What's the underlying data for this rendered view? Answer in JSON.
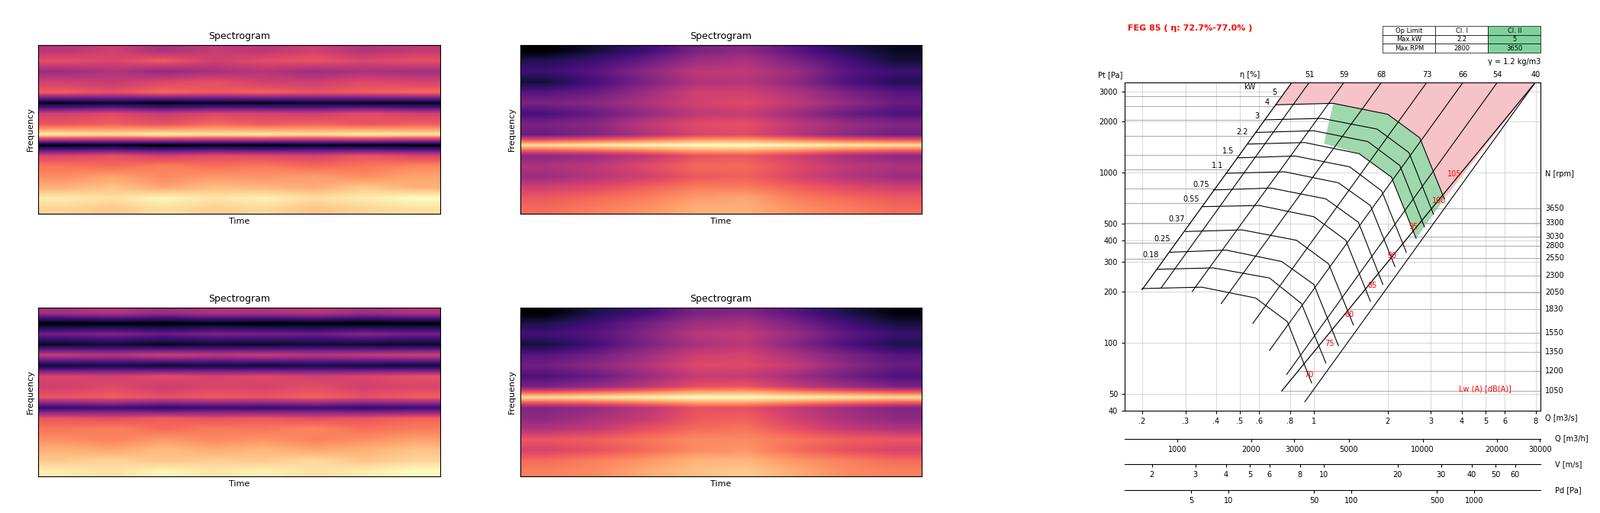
{
  "chart_data": [
    {
      "type": "heatmap",
      "title": "Spectrogram",
      "x_label": "Time",
      "y_label": "Frequency",
      "tick_labels": false,
      "cells": [
        [
          0.45,
          0.5,
          0.42,
          0.48,
          0.46,
          0.5,
          0.44,
          0.47
        ],
        [
          0.55,
          0.52,
          0.58,
          0.5,
          0.54,
          0.56,
          0.52,
          0.55
        ],
        [
          0.4,
          0.44,
          0.38,
          0.42,
          0.45,
          0.4,
          0.43,
          0.41
        ],
        [
          0.5,
          0.48,
          0.52,
          0.55,
          0.5,
          0.49,
          0.53,
          0.51
        ],
        [
          0.58,
          0.55,
          0.6,
          0.57,
          0.59,
          0.56,
          0.58,
          0.6
        ],
        [
          0.08,
          0.1,
          0.07,
          0.09,
          0.08,
          0.1,
          0.09,
          0.08
        ],
        [
          0.5,
          0.53,
          0.48,
          0.52,
          0.51,
          0.49,
          0.54,
          0.5
        ],
        [
          0.56,
          0.58,
          0.55,
          0.6,
          0.57,
          0.59,
          0.56,
          0.58
        ],
        [
          0.82,
          0.8,
          0.83,
          0.81,
          0.82,
          0.8,
          0.83,
          0.81
        ],
        [
          0.06,
          0.08,
          0.05,
          0.07,
          0.06,
          0.08,
          0.07,
          0.06
        ],
        [
          0.52,
          0.55,
          0.5,
          0.54,
          0.53,
          0.51,
          0.56,
          0.52
        ],
        [
          0.62,
          0.6,
          0.64,
          0.61,
          0.63,
          0.6,
          0.62,
          0.65
        ],
        [
          0.66,
          0.7,
          0.65,
          0.68,
          0.67,
          0.69,
          0.66,
          0.7
        ],
        [
          0.72,
          0.75,
          0.7,
          0.74,
          0.73,
          0.71,
          0.76,
          0.72
        ],
        [
          0.82,
          0.8,
          0.84,
          0.81,
          0.83,
          0.8,
          0.82,
          0.85
        ],
        [
          0.78,
          0.76,
          0.8,
          0.77,
          0.79,
          0.75,
          0.78,
          0.8
        ]
      ]
    },
    {
      "type": "heatmap",
      "title": "Spectrogram",
      "x_label": "Time",
      "y_label": "Frequency",
      "tick_labels": false,
      "cells": [
        [
          0.45,
          0.5,
          0.55,
          0.62,
          0.64,
          0.58,
          0.52,
          0.48
        ],
        [
          0.52,
          0.55,
          0.6,
          0.66,
          0.68,
          0.62,
          0.56,
          0.5
        ],
        [
          0.55,
          0.58,
          0.64,
          0.7,
          0.7,
          0.66,
          0.58,
          0.55
        ],
        [
          0.5,
          0.56,
          0.62,
          0.68,
          0.69,
          0.64,
          0.57,
          0.52
        ],
        [
          0.58,
          0.6,
          0.66,
          0.72,
          0.72,
          0.68,
          0.62,
          0.58
        ],
        [
          0.62,
          0.64,
          0.68,
          0.72,
          0.74,
          0.7,
          0.65,
          0.6
        ],
        [
          0.56,
          0.6,
          0.65,
          0.7,
          0.71,
          0.66,
          0.6,
          0.57
        ],
        [
          0.62,
          0.64,
          0.7,
          0.74,
          0.75,
          0.7,
          0.66,
          0.63
        ],
        [
          0.6,
          0.63,
          0.68,
          0.73,
          0.74,
          0.69,
          0.64,
          0.61
        ],
        [
          0.9,
          0.91,
          0.92,
          0.93,
          0.93,
          0.92,
          0.91,
          0.9
        ],
        [
          0.64,
          0.66,
          0.7,
          0.75,
          0.76,
          0.72,
          0.67,
          0.64
        ],
        [
          0.68,
          0.7,
          0.74,
          0.78,
          0.78,
          0.74,
          0.7,
          0.68
        ],
        [
          0.66,
          0.69,
          0.72,
          0.76,
          0.77,
          0.73,
          0.69,
          0.66
        ],
        [
          0.72,
          0.74,
          0.77,
          0.8,
          0.8,
          0.77,
          0.74,
          0.72
        ],
        [
          0.76,
          0.78,
          0.8,
          0.83,
          0.84,
          0.8,
          0.78,
          0.76
        ],
        [
          0.78,
          0.8,
          0.82,
          0.85,
          0.85,
          0.82,
          0.8,
          0.78
        ]
      ]
    },
    {
      "type": "heatmap",
      "title": "Spectrogram",
      "x_label": "Time",
      "y_label": "Frequency",
      "tick_labels": false,
      "cells": [
        [
          0.42,
          0.45,
          0.4,
          0.44,
          0.43,
          0.46,
          0.41,
          0.44
        ],
        [
          0.05,
          0.06,
          0.05,
          0.07,
          0.05,
          0.06,
          0.05,
          0.06
        ],
        [
          0.32,
          0.35,
          0.3,
          0.34,
          0.33,
          0.31,
          0.36,
          0.32
        ],
        [
          0.1,
          0.12,
          0.09,
          0.11,
          0.1,
          0.12,
          0.11,
          0.1
        ],
        [
          0.48,
          0.45,
          0.5,
          0.47,
          0.49,
          0.46,
          0.48,
          0.5
        ],
        [
          0.12,
          0.14,
          0.11,
          0.13,
          0.12,
          0.14,
          0.13,
          0.12
        ],
        [
          0.52,
          0.5,
          0.54,
          0.51,
          0.53,
          0.5,
          0.52,
          0.55
        ],
        [
          0.5,
          0.53,
          0.49,
          0.52,
          0.51,
          0.54,
          0.5,
          0.52
        ],
        [
          0.56,
          0.58,
          0.55,
          0.57,
          0.56,
          0.59,
          0.55,
          0.58
        ],
        [
          0.2,
          0.22,
          0.18,
          0.21,
          0.2,
          0.22,
          0.19,
          0.21
        ],
        [
          0.56,
          0.54,
          0.58,
          0.55,
          0.57,
          0.54,
          0.56,
          0.59
        ],
        [
          0.62,
          0.64,
          0.6,
          0.63,
          0.62,
          0.65,
          0.61,
          0.63
        ],
        [
          0.66,
          0.64,
          0.68,
          0.65,
          0.67,
          0.64,
          0.66,
          0.69
        ],
        [
          0.72,
          0.7,
          0.74,
          0.71,
          0.73,
          0.7,
          0.72,
          0.75
        ],
        [
          0.76,
          0.78,
          0.75,
          0.77,
          0.76,
          0.79,
          0.75,
          0.78
        ],
        [
          0.82,
          0.8,
          0.84,
          0.81,
          0.83,
          0.8,
          0.82,
          0.85
        ]
      ]
    },
    {
      "type": "heatmap",
      "title": "Spectrogram",
      "x_label": "Time",
      "y_label": "Frequency",
      "tick_labels": false,
      "cells": [
        [
          0.46,
          0.52,
          0.56,
          0.62,
          0.63,
          0.58,
          0.52,
          0.47
        ],
        [
          0.52,
          0.56,
          0.61,
          0.66,
          0.67,
          0.62,
          0.56,
          0.51
        ],
        [
          0.56,
          0.58,
          0.63,
          0.69,
          0.7,
          0.65,
          0.59,
          0.55
        ],
        [
          0.51,
          0.56,
          0.62,
          0.67,
          0.69,
          0.63,
          0.57,
          0.52
        ],
        [
          0.58,
          0.61,
          0.66,
          0.71,
          0.72,
          0.67,
          0.62,
          0.58
        ],
        [
          0.61,
          0.64,
          0.68,
          0.73,
          0.73,
          0.7,
          0.64,
          0.6
        ],
        [
          0.57,
          0.6,
          0.65,
          0.7,
          0.7,
          0.66,
          0.61,
          0.57
        ],
        [
          0.62,
          0.65,
          0.69,
          0.74,
          0.75,
          0.7,
          0.66,
          0.62
        ],
        [
          0.88,
          0.89,
          0.9,
          0.91,
          0.91,
          0.9,
          0.89,
          0.88
        ],
        [
          0.63,
          0.65,
          0.69,
          0.74,
          0.74,
          0.7,
          0.66,
          0.63
        ],
        [
          0.64,
          0.67,
          0.7,
          0.75,
          0.76,
          0.71,
          0.67,
          0.64
        ],
        [
          0.68,
          0.7,
          0.74,
          0.77,
          0.78,
          0.74,
          0.7,
          0.68
        ],
        [
          0.75,
          0.76,
          0.78,
          0.8,
          0.8,
          0.78,
          0.76,
          0.75
        ],
        [
          0.72,
          0.74,
          0.77,
          0.8,
          0.81,
          0.77,
          0.74,
          0.72
        ],
        [
          0.77,
          0.79,
          0.81,
          0.84,
          0.84,
          0.81,
          0.79,
          0.77
        ],
        [
          0.79,
          0.8,
          0.83,
          0.85,
          0.86,
          0.83,
          0.8,
          0.79
        ]
      ]
    },
    {
      "type": "line",
      "title": "FEG 85 ( η: 72.7%-77.0% )",
      "x_label": "Q [m3/s]",
      "y_label": "Pt [Pa]",
      "log": true,
      "grid": true,
      "xlim": [
        0.17,
        8.4
      ],
      "ylim": [
        40,
        3400
      ],
      "xticks": [
        {
          "value": 0.2,
          "label": ".2"
        },
        {
          "value": 0.3,
          "label": ".3"
        },
        {
          "value": 0.4,
          "label": ".4"
        },
        {
          "value": 0.5,
          "label": ".5"
        },
        {
          "value": 0.6,
          "label": ".6"
        },
        {
          "value": 0.8,
          "label": ".8"
        },
        1,
        2,
        3,
        4,
        5,
        6,
        8
      ],
      "yticks": [
        40,
        50,
        100,
        200,
        300,
        400,
        500,
        1000,
        2000,
        3000
      ],
      "table": {
        "rows": [
          [
            "Op Limit",
            "Cl. I",
            "Cl. II"
          ],
          [
            "Max.kW",
            2.2,
            5
          ],
          [
            "Max.RPM",
            2800,
            3650
          ]
        ]
      },
      "gamma": "γ = 1.2 kg/m3",
      "rpm_label": "N [rpm]",
      "series": [
        {
          "rpm": 3650,
          "label_pt": 618,
          "x": [
            0.7,
            1.2,
            2.0,
            2.7,
            3.4
          ],
          "values": [
            2500,
            2550,
            2200,
            1600,
            700
          ]
        },
        {
          "rpm": 3300,
          "label_pt": 505,
          "x": [
            0.63,
            1.08,
            1.81,
            2.44,
            3.07
          ],
          "values": [
            2040,
            2080,
            1800,
            1310,
            570
          ]
        },
        {
          "rpm": 3030,
          "label_pt": 418,
          "x": [
            0.58,
            1.0,
            1.66,
            2.24,
            2.82
          ],
          "values": [
            1720,
            1760,
            1520,
            1100,
            480
          ]
        },
        {
          "rpm": 2800,
          "label_pt": 371,
          "x": [
            0.54,
            0.92,
            1.53,
            2.07,
            2.61
          ],
          "values": [
            1470,
            1500,
            1290,
            940,
            410
          ]
        },
        {
          "rpm": 2550,
          "label_pt": 313,
          "x": [
            0.49,
            0.84,
            1.4,
            1.89,
            2.38
          ],
          "values": [
            1220,
            1250,
            1080,
            780,
            340
          ]
        },
        {
          "rpm": 2300,
          "label_pt": 249,
          "x": [
            0.44,
            0.76,
            1.26,
            1.7,
            2.14
          ],
          "values": [
            990,
            1010,
            870,
            640,
            280
          ]
        },
        {
          "rpm": 2050,
          "label_pt": 198,
          "x": [
            0.39,
            0.67,
            1.12,
            1.52,
            1.91
          ],
          "values": [
            790,
            810,
            700,
            510,
            220
          ]
        },
        {
          "rpm": 1830,
          "label_pt": 158,
          "x": [
            0.35,
            0.6,
            1.0,
            1.35,
            1.7
          ],
          "values": [
            630,
            640,
            550,
            400,
            175
          ]
        },
        {
          "rpm": 1550,
          "label_pt": 114,
          "x": [
            0.3,
            0.51,
            0.85,
            1.15,
            1.45
          ],
          "values": [
            450,
            460,
            400,
            290,
            127
          ]
        },
        {
          "rpm": 1350,
          "label_pt": 88,
          "x": [
            0.26,
            0.44,
            0.74,
            1.0,
            1.26
          ],
          "values": [
            340,
            350,
            300,
            220,
            96
          ]
        },
        {
          "rpm": 1200,
          "label_pt": 68,
          "x": [
            0.23,
            0.39,
            0.66,
            0.89,
            1.12
          ],
          "values": [
            270,
            275,
            240,
            170,
            76
          ]
        },
        {
          "rpm": 1050,
          "label_pt": 52,
          "x": [
            0.2,
            0.35,
            0.58,
            0.78,
            0.98
          ],
          "values": [
            208,
            212,
            183,
            133,
            58
          ]
        }
      ],
      "efficiency_label": "η [%]",
      "efficiency_lines": [
        {
          "eta": 51,
          "x": [
            0.96,
            0.239
          ],
          "values": [
            3400,
            210
          ]
        },
        {
          "eta": 59,
          "x": [
            1.33,
            0.32
          ],
          "values": [
            3400,
            200
          ]
        },
        {
          "eta": 68,
          "x": [
            1.89,
            0.42
          ],
          "values": [
            3400,
            170
          ]
        },
        {
          "eta": 73,
          "x": [
            2.89,
            0.565
          ],
          "values": [
            3400,
            130
          ]
        },
        {
          "eta": 66,
          "x": [
            4.06,
            0.66
          ],
          "values": [
            3400,
            90
          ]
        },
        {
          "eta": 54,
          "x": [
            5.6,
            0.775
          ],
          "values": [
            3400,
            65
          ]
        },
        {
          "eta": 40,
          "x": [
            8.0,
            0.92
          ],
          "values": [
            3400,
            45
          ]
        }
      ],
      "power_label": "kW",
      "power_marks": [
        {
          "kw": 5,
          "pt": 2820
        },
        {
          "kw": 4,
          "pt": 2460
        },
        {
          "kw": 3,
          "pt": 2030
        },
        {
          "kw": 2.2,
          "pt": 1650
        },
        {
          "kw": 1.5,
          "pt": 1270
        },
        {
          "kw": 1.1,
          "pt": 1040
        },
        {
          "kw": 0.75,
          "pt": 805
        },
        {
          "kw": 0.55,
          "pt": 660
        },
        {
          "kw": 0.37,
          "pt": 505
        },
        {
          "kw": 0.25,
          "pt": 387
        },
        {
          "kw": 0.18,
          "pt": 312
        }
      ],
      "sound_label": "Lw (A) [dB(A)]",
      "sound_marks": [
        {
          "lw": 105,
          "x": 3.49,
          "pt": 975
        },
        {
          "lw": 100,
          "x": 3.03,
          "pt": 684
        },
        {
          "lw": 95,
          "x": 2.44,
          "pt": 480
        },
        {
          "lw": 90,
          "x": 1.99,
          "pt": 324
        },
        {
          "lw": 85,
          "x": 1.65,
          "pt": 216
        },
        {
          "lw": 80,
          "x": 1.34,
          "pt": 146
        },
        {
          "lw": 75,
          "x": 1.11,
          "pt": 99
        },
        {
          "lw": 70,
          "x": 0.91,
          "pt": 65
        }
      ],
      "outline": {
        "left": {
          "x": [
            0.2,
            0.816
          ],
          "values": [
            205,
            3400
          ]
        },
        "right": {
          "x": [
            0.74,
            8.0
          ],
          "values": [
            52,
            3400
          ]
        }
      },
      "regions": [
        {
          "color": "#f6c3c8",
          "x": [
            0.7,
            1.2,
            2.0,
            2.7,
            3.4,
            8.0,
            0.816
          ],
          "values": [
            2500,
            2550,
            2200,
            1600,
            700,
            3400,
            3400
          ]
        },
        {
          "color": "#9fd8ad",
          "x": [
            1.2,
            2.0,
            2.7,
            3.4,
            2.61,
            2.07,
            1.53,
            1.1
          ],
          "values": [
            2550,
            2200,
            1600,
            700,
            410,
            940,
            1290,
            1480
          ]
        }
      ],
      "scales": [
        {
          "label": "Q [m3/h]",
          "xlim": [
            612,
            30240
          ],
          "xticks": [
            1000,
            2000,
            3000,
            5000,
            10000,
            20000,
            30000
          ]
        },
        {
          "label": "V [m/s]",
          "xlim": [
            1.55,
            76.4
          ],
          "xticks": [
            2,
            3,
            4,
            5,
            6,
            8,
            10,
            20,
            30,
            40,
            50,
            60
          ]
        },
        {
          "label": "Pd [Pa]",
          "xlim": [
            1.44,
            3500
          ],
          "xticks": [
            5,
            10,
            50,
            100,
            500,
            1000
          ]
        }
      ]
    }
  ]
}
